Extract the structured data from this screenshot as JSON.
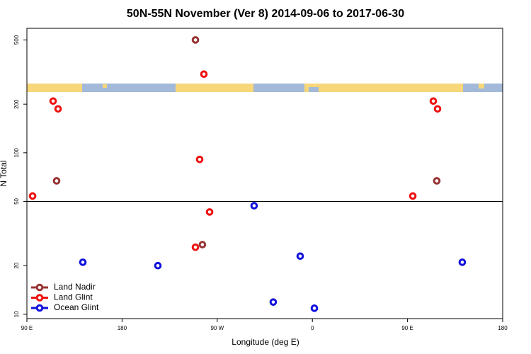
{
  "chart_data": {
    "type": "scatter",
    "title": "50N-55N November (Ver 8)   2014-09-06 to 2017-06-30",
    "x_label": "Longitude (deg E)",
    "y_label": "N Total",
    "xlim": [
      90,
      540
    ],
    "xticks": [
      {
        "value": 90,
        "label": "90 E"
      },
      180,
      {
        "value": 270,
        "label": "90 W"
      },
      {
        "value": 360,
        "label": "0"
      },
      {
        "value": 450,
        "label": "90 E"
      },
      {
        "value": 540,
        "label": "180"
      }
    ],
    "ylim": [
      9.4,
      590
    ],
    "yticks": [
      10,
      20,
      50,
      100,
      200,
      500
    ],
    "log_y": true,
    "reference_line": 50,
    "legend": "bottom-left",
    "series": [
      {
        "name": "Land Nadir",
        "color": "#993333",
        "x": [
          249.4,
          118.1,
          256,
          477.7
        ],
        "values": [
          500,
          67,
          27,
          67
        ]
      },
      {
        "name": "Land Glint",
        "color": "#ee1111",
        "x": [
          95.4,
          114.8,
          119.5,
          257.4,
          253.4,
          262.8,
          249.4,
          455,
          474.4,
          478.4
        ],
        "values": [
          54,
          209,
          187,
          307,
          91,
          43,
          26,
          54,
          209,
          187
        ]
      },
      {
        "name": "Ocean Glint",
        "color": "#1111dd",
        "x": [
          142.9,
          213.9,
          304.9,
          323,
          348.5,
          361.9,
          501.8
        ],
        "values": [
          21,
          20,
          47,
          11.9,
          22.9,
          10.9,
          21
        ]
      }
    ]
  }
}
